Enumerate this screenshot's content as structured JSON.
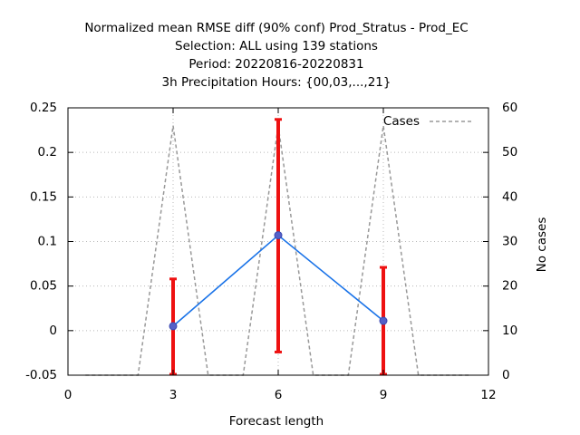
{
  "chart_data": {
    "type": "line",
    "title_lines": [
      "Normalized mean RMSE diff (90% conf) Prod_Stratus - Prod_EC",
      "Selection: ALL using    139 stations",
      "Period: 20220816-20220831",
      "3h Precipitation    Hours: {00,03,...,21}"
    ],
    "xlabel": "Forecast length",
    "ylabel": "",
    "y2label": "No cases",
    "xlim": [
      0,
      12
    ],
    "ylim": [
      -0.05,
      0.25
    ],
    "y2lim": [
      0,
      60
    ],
    "xticks": [
      0,
      3,
      6,
      9,
      12
    ],
    "xtick_labels": [
      "0",
      "3",
      "6",
      "9",
      "12"
    ],
    "yticks": [
      -0.05,
      0,
      0.05,
      0.1,
      0.15,
      0.2,
      0.25
    ],
    "ytick_labels": [
      "-0.05",
      "0",
      "0.05",
      "0.1",
      "0.15",
      "0.2",
      "0.25"
    ],
    "y2ticks": [
      0,
      10,
      20,
      30,
      40,
      50,
      60
    ],
    "y2tick_labels": [
      "0",
      "10",
      "20",
      "30",
      "40",
      "50",
      "60"
    ],
    "grid": true,
    "legend_position": "top-right",
    "series": [
      {
        "color": "#1a73e8",
        "marker_color": "#5560c8",
        "x": [
          3,
          6,
          9
        ],
        "y": [
          0.005,
          0.107,
          0.011
        ],
        "err_low": [
          -0.049,
          -0.024,
          -0.049
        ],
        "err_high": [
          0.058,
          0.237,
          0.071
        ],
        "err_color": "#ee1111"
      },
      {
        "name": "Cases",
        "axis": "y2",
        "style": "dashed",
        "color": "#999999",
        "x": [
          0.5,
          2.0,
          3.0,
          4.0,
          5.0,
          6.0,
          7.0,
          8.0,
          9.0,
          10.0,
          11.5
        ],
        "y": [
          0,
          0,
          56,
          0,
          0,
          56,
          0,
          0,
          56,
          0,
          0
        ]
      }
    ]
  }
}
